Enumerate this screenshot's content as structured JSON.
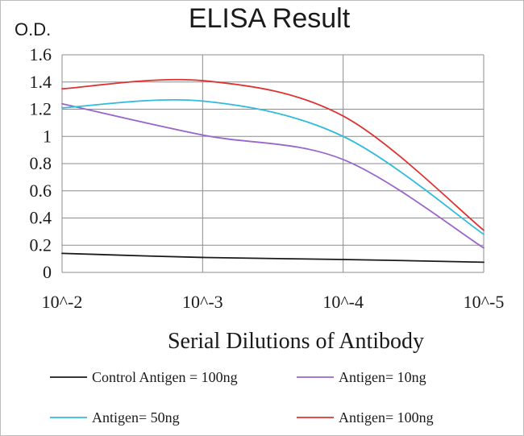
{
  "chart_data": {
    "type": "line",
    "title": "ELISA Result",
    "ylabel": "O.D.",
    "xlabel": "Serial Dilutions  of Antibody",
    "x_ticks": [
      "10^-2",
      "10^-3",
      "10^-4",
      "10^-5"
    ],
    "y_ticks": [
      "1.6",
      "1.4",
      "1.2",
      "1",
      "0.8",
      "0.6",
      "0.4",
      "0.2",
      "0"
    ],
    "ylim": [
      0,
      1.6
    ],
    "grid": true,
    "legend_position": "bottom",
    "series": [
      {
        "name": "Control Antigen = 100ng",
        "color": "#1a1a1a",
        "x": [
          -2,
          -3,
          -4,
          -5
        ],
        "y": [
          0.14,
          0.11,
          0.095,
          0.075
        ]
      },
      {
        "name": "Antigen= 10ng",
        "color": "#9966cc",
        "x": [
          -2,
          -3,
          -4,
          -5
        ],
        "y": [
          1.24,
          1.01,
          0.83,
          0.18
        ]
      },
      {
        "name": "Antigen= 50ng",
        "color": "#33bbdd",
        "x": [
          -2,
          -3,
          -4,
          -5
        ],
        "y": [
          1.21,
          1.26,
          1.0,
          0.28
        ]
      },
      {
        "name": "Antigen= 100ng",
        "color": "#dd3333",
        "x": [
          -2,
          -3,
          -4,
          -5
        ],
        "y": [
          1.35,
          1.41,
          1.15,
          0.31
        ]
      }
    ]
  }
}
